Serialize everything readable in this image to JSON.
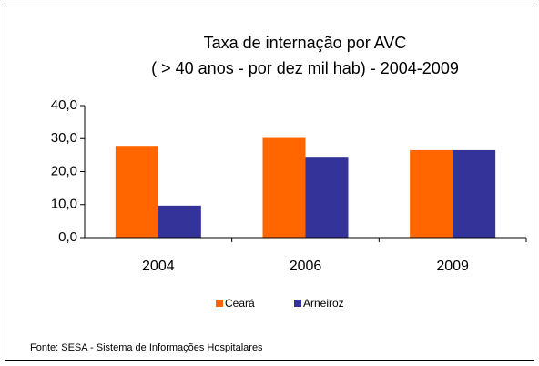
{
  "chart_data": {
    "type": "bar",
    "title": "Taxa de internação por AVC",
    "subtitle": "( > 40 anos - por dez mil hab) - 2004-2009",
    "categories": [
      "2004",
      "2006",
      "2009"
    ],
    "series": [
      {
        "name": "Ceará",
        "color": "#ff6600",
        "values": [
          27.8,
          30.2,
          26.5
        ]
      },
      {
        "name": "Arneiroz",
        "color": "#333399",
        "values": [
          9.7,
          24.5,
          26.5
        ]
      }
    ],
    "ylim": [
      0,
      40
    ],
    "yticks": [
      {
        "value": 0,
        "label": "0,0"
      },
      {
        "value": 10,
        "label": "10,0"
      },
      {
        "value": 20,
        "label": "20,0"
      },
      {
        "value": 30,
        "label": "30,0"
      },
      {
        "value": 40,
        "label": "40,0"
      }
    ],
    "legend": "bottom",
    "source": "Fonte: SESA - Sistema de Informações Hospitalares"
  }
}
